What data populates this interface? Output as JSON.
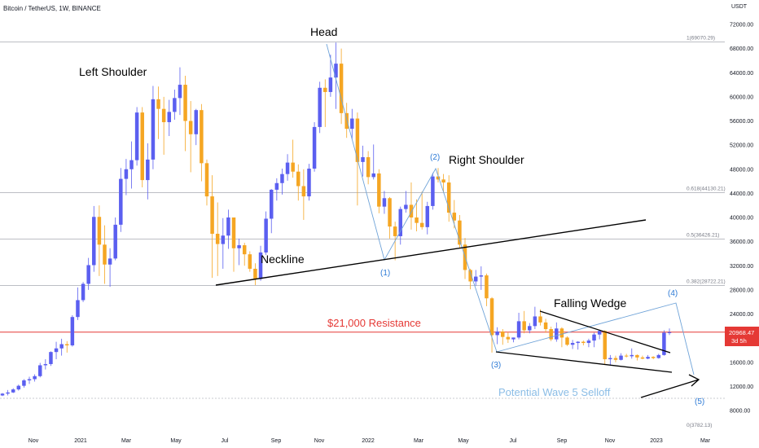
{
  "header": {
    "title": "Bitcoin / TetherUS, 1W, BINANCE",
    "currency": "USDT"
  },
  "chart_data": {
    "type": "candlestick",
    "title": "Bitcoin / TetherUS, 1W, BINANCE",
    "yaxis_unit": "USDT",
    "ylim": [
      6000,
      75000
    ],
    "y_ticks": [
      8000,
      12000,
      16000,
      20000,
      24000,
      28000,
      32000,
      36000,
      40000,
      44000,
      48000,
      52000,
      56000,
      60000,
      64000,
      68000,
      72000
    ],
    "x_ticks": [
      "Nov",
      "2021",
      "Mar",
      "May",
      "Jul",
      "Sep",
      "Nov",
      "2022",
      "Mar",
      "May",
      "Jul",
      "Sep",
      "Nov",
      "2023",
      "Mar"
    ],
    "last_price": "20968.47",
    "countdown": "3d 5h",
    "fib_levels": [
      {
        "label": "1(69070.29)",
        "value": 69070.29
      },
      {
        "label": "0.618(44130.21)",
        "value": 44130.21
      },
      {
        "label": "0.5(36426.21)",
        "value": 36426.21
      },
      {
        "label": "0.382(28722.21)",
        "value": 28722.21
      },
      {
        "label": "0(3782.13)",
        "value": 3782.13
      }
    ],
    "resistance": {
      "label": "$21,000 Resistance",
      "value": 21000
    },
    "annotations": [
      "Head",
      "Left Shoulder",
      "Right Shoulder",
      "Neckline",
      "Falling Wedge",
      "Potential Wave 5 Selloff"
    ],
    "wave_labels": [
      "(1)",
      "(2)",
      "(3)",
      "(4)",
      "(5)"
    ],
    "candles": [
      [
        10500,
        10900,
        10400,
        10800
      ],
      [
        10800,
        11400,
        10500,
        11000
      ],
      [
        11000,
        11700,
        10900,
        11500
      ],
      [
        11500,
        12300,
        11300,
        12100
      ],
      [
        12100,
        13200,
        11800,
        13000
      ],
      [
        13000,
        13600,
        12400,
        13200
      ],
      [
        13200,
        14000,
        12800,
        13700
      ],
      [
        13700,
        15900,
        13500,
        15500
      ],
      [
        15500,
        16500,
        14800,
        15700
      ],
      [
        15700,
        17800,
        15400,
        17700
      ],
      [
        17700,
        19400,
        16500,
        18300
      ],
      [
        18300,
        19900,
        17100,
        19000
      ],
      [
        19000,
        19500,
        17600,
        18800
      ],
      [
        18800,
        23800,
        18600,
        23500
      ],
      [
        23500,
        28400,
        23000,
        26300
      ],
      [
        26300,
        29300,
        26000,
        29000
      ],
      [
        29000,
        33300,
        28000,
        32100
      ],
      [
        32100,
        41900,
        31000,
        40100
      ],
      [
        40100,
        42000,
        30300,
        35500
      ],
      [
        35500,
        38700,
        29000,
        32200
      ],
      [
        32200,
        34900,
        28500,
        33200
      ],
      [
        33200,
        40000,
        32900,
        38800
      ],
      [
        38800,
        48200,
        37600,
        46400
      ],
      [
        46400,
        49700,
        43700,
        48000
      ],
      [
        48000,
        52600,
        44800,
        49500
      ],
      [
        49500,
        58300,
        48600,
        57400
      ],
      [
        57400,
        58300,
        45000,
        46200
      ],
      [
        46200,
        52300,
        43000,
        49600
      ],
      [
        49600,
        61800,
        48000,
        59600
      ],
      [
        59600,
        61700,
        53000,
        58000
      ],
      [
        58000,
        60000,
        50400,
        55800
      ],
      [
        55800,
        59500,
        53500,
        57500
      ],
      [
        57500,
        61200,
        56200,
        59800
      ],
      [
        59800,
        64900,
        57000,
        62000
      ],
      [
        62000,
        63500,
        51000,
        56000
      ],
      [
        56000,
        59300,
        47500,
        53800
      ],
      [
        53800,
        58000,
        52000,
        57800
      ],
      [
        57800,
        58800,
        46000,
        49000
      ],
      [
        49000,
        49600,
        42000,
        43500
      ],
      [
        43500,
        47000,
        30000,
        37300
      ],
      [
        37300,
        42500,
        30300,
        35600
      ],
      [
        35600,
        39900,
        31500,
        37000
      ],
      [
        37000,
        41300,
        34800,
        40000
      ],
      [
        40000,
        40000,
        31000,
        34900
      ],
      [
        34900,
        36500,
        32100,
        35400
      ],
      [
        35400,
        35800,
        32000,
        33900
      ],
      [
        33900,
        34400,
        31000,
        31500
      ],
      [
        31500,
        32400,
        28800,
        29800
      ],
      [
        29800,
        35300,
        29500,
        34200
      ],
      [
        34200,
        41000,
        33800,
        39800
      ],
      [
        39800,
        44700,
        37400,
        44600
      ],
      [
        44600,
        46500,
        42800,
        45700
      ],
      [
        45700,
        48100,
        43800,
        47200
      ],
      [
        47200,
        50500,
        46100,
        49100
      ],
      [
        49100,
        52900,
        46600,
        47600
      ],
      [
        47600,
        48800,
        42800,
        45200
      ],
      [
        45200,
        48000,
        39600,
        43500
      ],
      [
        43500,
        48900,
        42800,
        48100
      ],
      [
        48100,
        55800,
        47600,
        55000
      ],
      [
        55000,
        62500,
        54000,
        61500
      ],
      [
        61500,
        62900,
        55000,
        60800
      ],
      [
        60800,
        67000,
        60000,
        63200
      ],
      [
        63200,
        69000,
        58000,
        65500
      ],
      [
        65500,
        68000,
        55500,
        57300
      ],
      [
        57300,
        59000,
        53200,
        54700
      ],
      [
        54700,
        58000,
        53000,
        56400
      ],
      [
        56400,
        57400,
        42000,
        49200
      ],
      [
        49200,
        51900,
        46800,
        50000
      ],
      [
        50000,
        51000,
        45500,
        46700
      ],
      [
        46700,
        52100,
        46300,
        47300
      ],
      [
        47300,
        48000,
        40700,
        41800
      ],
      [
        41800,
        44400,
        40600,
        43200
      ],
      [
        43200,
        43400,
        36500,
        38500
      ],
      [
        38500,
        39300,
        32900,
        36900
      ],
      [
        36900,
        41800,
        35500,
        41400
      ],
      [
        41400,
        44400,
        40800,
        42100
      ],
      [
        42100,
        45800,
        38000,
        40000
      ],
      [
        40000,
        43000,
        37700,
        39100
      ],
      [
        39100,
        44300,
        38000,
        38400
      ],
      [
        38400,
        42600,
        37200,
        41900
      ],
      [
        41900,
        47400,
        41300,
        46800
      ],
      [
        46800,
        48200,
        45800,
        46300
      ],
      [
        46300,
        47200,
        44100,
        45800
      ],
      [
        45800,
        47000,
        39300,
        40800
      ],
      [
        40800,
        42900,
        38200,
        39500
      ],
      [
        39500,
        40400,
        35000,
        35500
      ],
      [
        35500,
        36600,
        29800,
        31300
      ],
      [
        31300,
        31500,
        28100,
        29400
      ],
      [
        29400,
        31300,
        28700,
        30200
      ],
      [
        30200,
        31900,
        28000,
        30400
      ],
      [
        30400,
        30700,
        25300,
        26600
      ],
      [
        26600,
        26800,
        17600,
        20500
      ],
      [
        20500,
        21800,
        19000,
        21100
      ],
      [
        21100,
        21500,
        18900,
        20200
      ],
      [
        20200,
        21000,
        19200,
        19800
      ],
      [
        19800,
        20100,
        19300,
        20100
      ],
      [
        20100,
        24200,
        19800,
        22800
      ],
      [
        22800,
        24500,
        20800,
        21300
      ],
      [
        21300,
        22500,
        20800,
        22000
      ],
      [
        22000,
        25200,
        21500,
        23600
      ],
      [
        23600,
        24800,
        22100,
        22600
      ],
      [
        22600,
        23200,
        20900,
        21500
      ],
      [
        21500,
        21900,
        19500,
        19800
      ],
      [
        19800,
        22600,
        19400,
        21600
      ],
      [
        21600,
        21800,
        18500,
        20100
      ],
      [
        20100,
        20300,
        18700,
        18900
      ],
      [
        18900,
        19700,
        18200,
        19200
      ],
      [
        19200,
        19500,
        18100,
        19400
      ],
      [
        19400,
        19600,
        18800,
        19200
      ],
      [
        19200,
        19900,
        18500,
        19600
      ],
      [
        19600,
        20900,
        18500,
        20600
      ],
      [
        20600,
        21400,
        19800,
        21200
      ],
      [
        21200,
        21300,
        15600,
        16500
      ],
      [
        16500,
        17200,
        15500,
        16700
      ],
      [
        16700,
        17100,
        16000,
        16400
      ],
      [
        16400,
        17500,
        16300,
        17100
      ],
      [
        17100,
        17400,
        16800,
        17000
      ],
      [
        17000,
        18300,
        16600,
        17200
      ],
      [
        17200,
        17300,
        16300,
        16800
      ],
      [
        16800,
        17100,
        16500,
        16600
      ],
      [
        16600,
        17200,
        16500,
        16900
      ],
      [
        16900,
        17000,
        16500,
        16700
      ],
      [
        16700,
        17400,
        16600,
        17200
      ],
      [
        17200,
        21300,
        17100,
        20900
      ],
      [
        20900,
        21600,
        20500,
        20968.47
      ]
    ]
  }
}
